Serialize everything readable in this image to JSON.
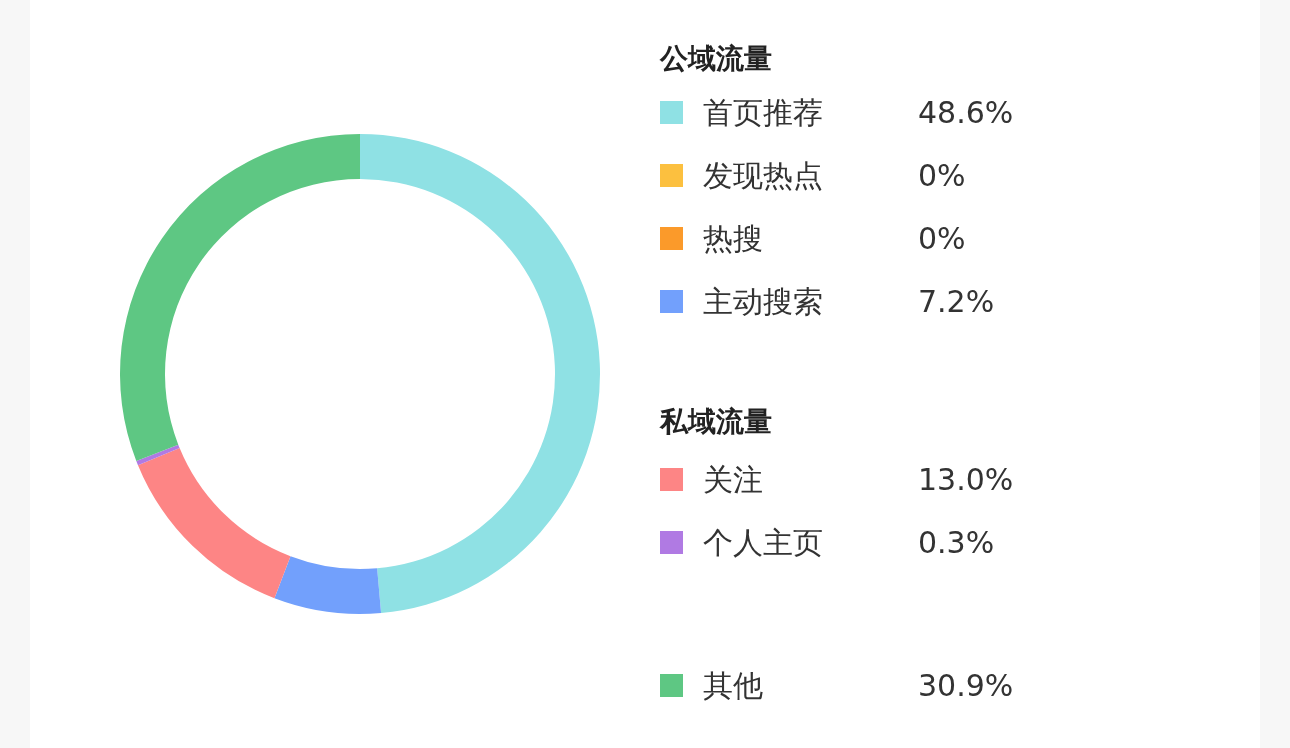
{
  "chart_data": {
    "type": "donut",
    "categories": [
      "首页推荐",
      "发现热点",
      "热搜",
      "主动搜索",
      "关注",
      "个人主页",
      "其他"
    ],
    "values": [
      48.6,
      0,
      0,
      7.2,
      13.0,
      0.3,
      30.9
    ],
    "value_labels": [
      "48.6%",
      "0%",
      "0%",
      "7.2%",
      "13.0%",
      "0.3%",
      "30.9%"
    ],
    "colors": [
      "#8fe1e4",
      "#fcc03f",
      "#fb9a2a",
      "#72a0fc",
      "#fd8585",
      "#b07ae3",
      "#5ec783"
    ],
    "annotations": [
      "公域流量",
      "私域流量"
    ],
    "legend": "right"
  }
}
